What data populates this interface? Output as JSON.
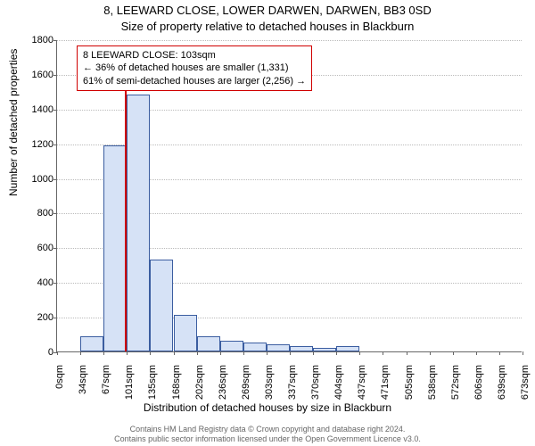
{
  "title_line1": "8, LEEWARD CLOSE, LOWER DARWEN, DARWEN, BB3 0SD",
  "title_line2": "Size of property relative to detached houses in Blackburn",
  "y_axis_label": "Number of detached properties",
  "x_axis_label": "Distribution of detached houses by size in Blackburn",
  "chart": {
    "type": "histogram",
    "ylim": [
      0,
      1800
    ],
    "ytick_step": 200,
    "yticks": [
      0,
      200,
      400,
      600,
      800,
      1000,
      1200,
      1400,
      1600,
      1800
    ],
    "xtick_labels": [
      "0sqm",
      "34sqm",
      "67sqm",
      "101sqm",
      "135sqm",
      "168sqm",
      "202sqm",
      "236sqm",
      "269sqm",
      "303sqm",
      "337sqm",
      "370sqm",
      "404sqm",
      "437sqm",
      "471sqm",
      "505sqm",
      "538sqm",
      "572sqm",
      "606sqm",
      "639sqm",
      "673sqm"
    ],
    "n_bins": 20,
    "bar_values": [
      0,
      90,
      1190,
      1480,
      530,
      210,
      90,
      60,
      50,
      40,
      30,
      20,
      30,
      0,
      0,
      0,
      0,
      0,
      0,
      0
    ],
    "bar_fill": "#d6e2f6",
    "bar_border": "#3b5da0",
    "grid_color": "#bbbbbb",
    "axis_color": "#666666",
    "background_color": "#ffffff",
    "marker": {
      "x_sqm": 103,
      "x_max_sqm": 706.65,
      "color": "#d00000",
      "line_top_value": 1600
    },
    "annotation": {
      "line1": "8 LEEWARD CLOSE: 103sqm",
      "line2": "← 36% of detached houses are smaller (1,331)",
      "line3": "61% of semi-detached houses are larger (2,256) →",
      "border_color": "#d00000",
      "fontsize": 11
    },
    "title_fontsize": 13,
    "axis_label_fontsize": 12,
    "tick_fontsize": 11
  },
  "footer_line1": "Contains HM Land Registry data © Crown copyright and database right 2024.",
  "footer_line2": "Contains public sector information licensed under the Open Government Licence v3.0."
}
